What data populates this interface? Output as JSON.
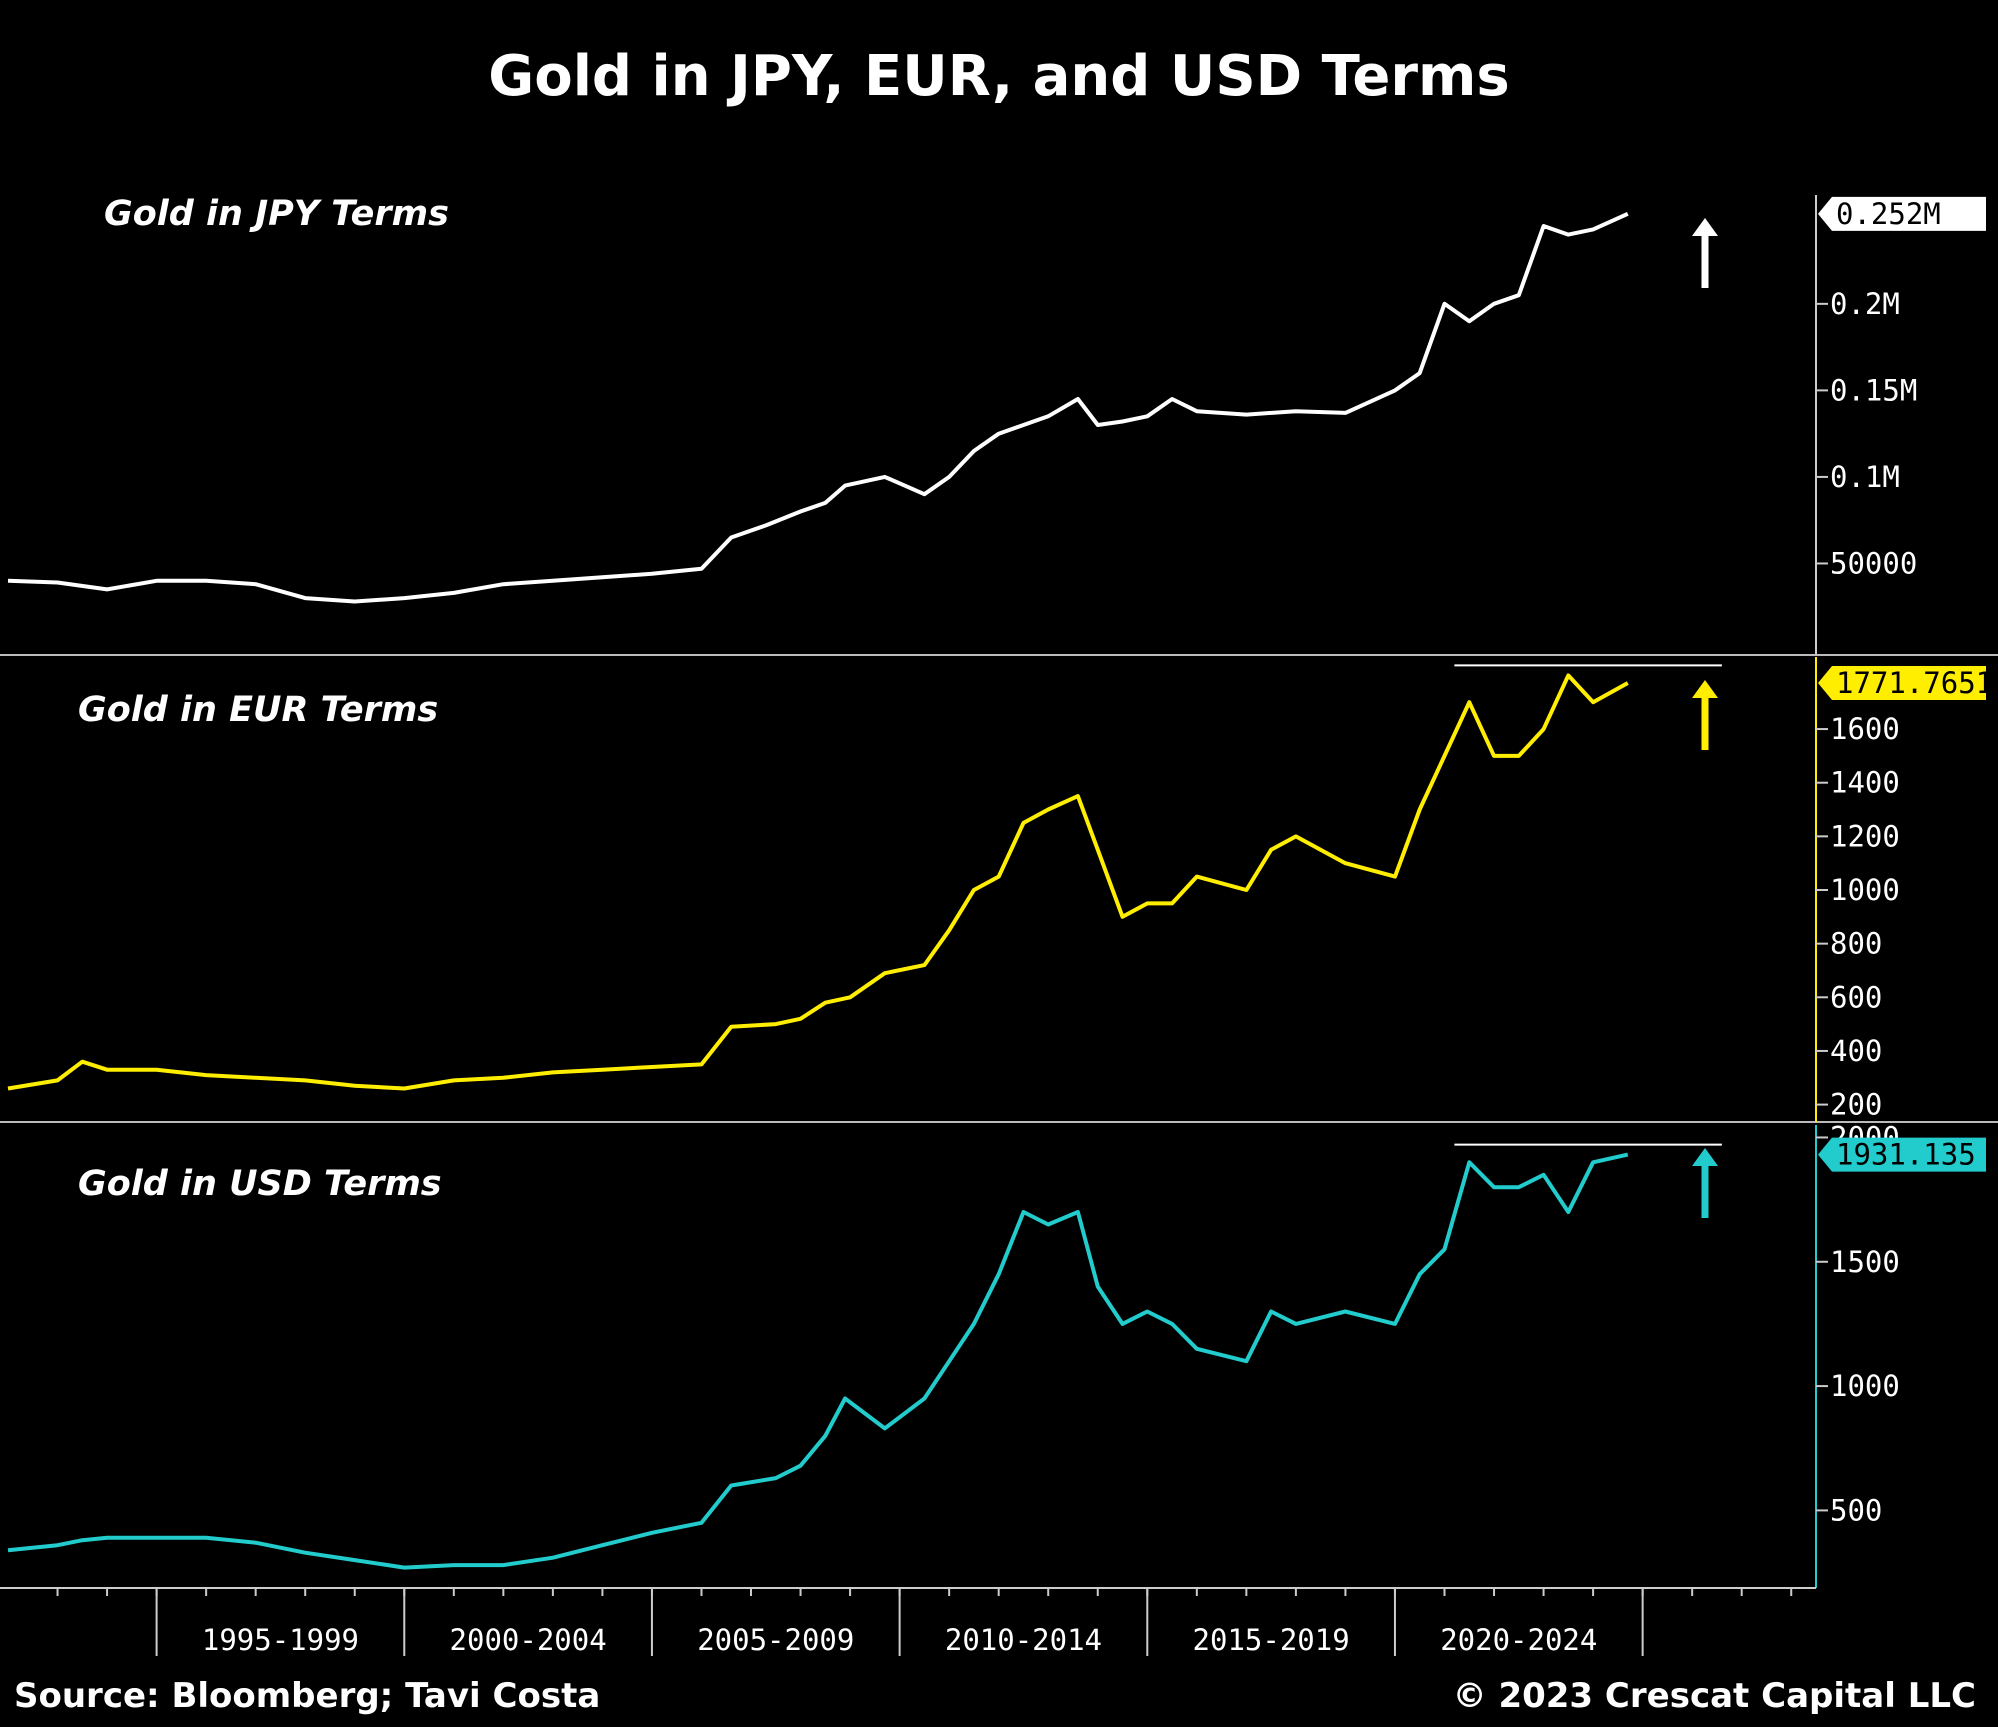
{
  "title": "Gold in JPY, EUR, and USD Terms",
  "footer": {
    "source": "Source: Bloomberg; Tavi Costa",
    "copyright": "© 2023 Crescat Capital LLC"
  },
  "chart_data": {
    "type": "line",
    "x_range": [
      1991,
      2027.5
    ],
    "x_tick_labels": [
      "1995-1999",
      "2000-2004",
      "2005-2009",
      "2010-2014",
      "2015-2019",
      "2020-2024"
    ],
    "x_tick_bounds": [
      1994,
      1999,
      2004,
      2009,
      2014,
      2019,
      2024
    ],
    "panels": [
      {
        "title": "Gold in JPY Terms",
        "color": "#ffffff",
        "last_value_label": "0.252M",
        "ylim": [
          0,
          0.26
        ],
        "y_ticks": [
          {
            "value": 0.05,
            "label": "50000"
          },
          {
            "value": 0.1,
            "label": "0.1M"
          },
          {
            "value": 0.15,
            "label": "0.15M"
          },
          {
            "value": 0.2,
            "label": "0.2M"
          }
        ],
        "x": [
          1991.0,
          1992.0,
          1993.0,
          1994.0,
          1995.0,
          1996.0,
          1997.0,
          1998.0,
          1999.0,
          2000.0,
          2001.0,
          2002.0,
          2003.0,
          2004.0,
          2005.0,
          2005.6,
          2006.3,
          2007.0,
          2007.5,
          2007.9,
          2008.7,
          2009.5,
          2010.0,
          2010.5,
          2011.0,
          2011.5,
          2012.0,
          2012.6,
          2013.0,
          2013.5,
          2014.0,
          2014.5,
          2015.0,
          2016.0,
          2017.0,
          2018.0,
          2019.0,
          2019.5,
          2020.0,
          2020.5,
          2021.0,
          2021.5,
          2022.0,
          2022.5,
          2023.0,
          2023.7
        ],
        "y": [
          0.04,
          0.039,
          0.035,
          0.04,
          0.04,
          0.038,
          0.03,
          0.028,
          0.03,
          0.033,
          0.038,
          0.04,
          0.042,
          0.044,
          0.047,
          0.065,
          0.072,
          0.08,
          0.085,
          0.095,
          0.1,
          0.09,
          0.1,
          0.115,
          0.125,
          0.13,
          0.135,
          0.145,
          0.13,
          0.132,
          0.135,
          0.145,
          0.138,
          0.136,
          0.138,
          0.137,
          0.15,
          0.16,
          0.2,
          0.19,
          0.2,
          0.205,
          0.245,
          0.24,
          0.243,
          0.252
        ]
      },
      {
        "title": "Gold in EUR Terms",
        "color": "#ffee00",
        "last_value_label": "1771.7651",
        "ylim": [
          150,
          1850
        ],
        "y_ticks": [
          {
            "value": 200,
            "label": "200"
          },
          {
            "value": 400,
            "label": "400"
          },
          {
            "value": 600,
            "label": "600"
          },
          {
            "value": 800,
            "label": "800"
          },
          {
            "value": 1000,
            "label": "1000"
          },
          {
            "value": 1200,
            "label": "1200"
          },
          {
            "value": 1400,
            "label": "1400"
          },
          {
            "value": 1600,
            "label": "1600"
          }
        ],
        "x": [
          1991.0,
          1992.0,
          1992.5,
          1993.0,
          1994.0,
          1995.0,
          1996.0,
          1997.0,
          1998.0,
          1999.0,
          2000.0,
          2001.0,
          2002.0,
          2003.0,
          2004.0,
          2005.0,
          2005.6,
          2006.5,
          2007.0,
          2007.5,
          2008.0,
          2008.7,
          2009.5,
          2010.0,
          2010.5,
          2011.0,
          2011.5,
          2012.0,
          2012.6,
          2013.0,
          2013.5,
          2014.0,
          2014.5,
          2015.0,
          2016.0,
          2016.5,
          2017.0,
          2018.0,
          2019.0,
          2019.5,
          2020.0,
          2020.5,
          2021.0,
          2021.5,
          2022.0,
          2022.5,
          2023.0,
          2023.7
        ],
        "y": [
          260,
          290,
          360,
          330,
          330,
          310,
          300,
          290,
          270,
          260,
          290,
          300,
          320,
          330,
          340,
          350,
          490,
          500,
          520,
          580,
          600,
          690,
          720,
          850,
          1000,
          1050,
          1250,
          1300,
          1350,
          1150,
          900,
          950,
          950,
          1050,
          1000,
          1150,
          1200,
          1100,
          1050,
          1300,
          1500,
          1700,
          1500,
          1500,
          1600,
          1800,
          1700,
          1771.77
        ]
      },
      {
        "title": "Gold in USD Terms",
        "color": "#22cccc",
        "last_value_label": "1931.135",
        "ylim": [
          200,
          2030
        ],
        "y_ticks": [
          {
            "value": 500,
            "label": "500"
          },
          {
            "value": 1000,
            "label": "1000"
          },
          {
            "value": 1500,
            "label": "1500"
          },
          {
            "value": 2000,
            "label": "2000"
          }
        ],
        "x": [
          1991.0,
          1992.0,
          1992.5,
          1993.0,
          1994.0,
          1995.0,
          1996.0,
          1997.0,
          1998.0,
          1999.0,
          2000.0,
          2001.0,
          2002.0,
          2003.0,
          2004.0,
          2005.0,
          2005.6,
          2006.5,
          2007.0,
          2007.5,
          2007.9,
          2008.7,
          2009.5,
          2010.0,
          2010.5,
          2011.0,
          2011.5,
          2012.0,
          2012.6,
          2013.0,
          2013.5,
          2014.0,
          2014.5,
          2015.0,
          2016.0,
          2016.5,
          2017.0,
          2018.0,
          2019.0,
          2019.5,
          2020.0,
          2020.5,
          2021.0,
          2021.5,
          2022.0,
          2022.5,
          2023.0,
          2023.7
        ],
        "y": [
          340,
          360,
          380,
          390,
          390,
          390,
          370,
          330,
          300,
          270,
          280,
          280,
          310,
          360,
          410,
          450,
          600,
          630,
          680,
          800,
          950,
          830,
          950,
          1100,
          1250,
          1450,
          1700,
          1650,
          1700,
          1400,
          1250,
          1300,
          1250,
          1150,
          1100,
          1300,
          1250,
          1300,
          1250,
          1450,
          1550,
          1900,
          1800,
          1800,
          1850,
          1700,
          1900,
          1931.14
        ]
      }
    ]
  }
}
